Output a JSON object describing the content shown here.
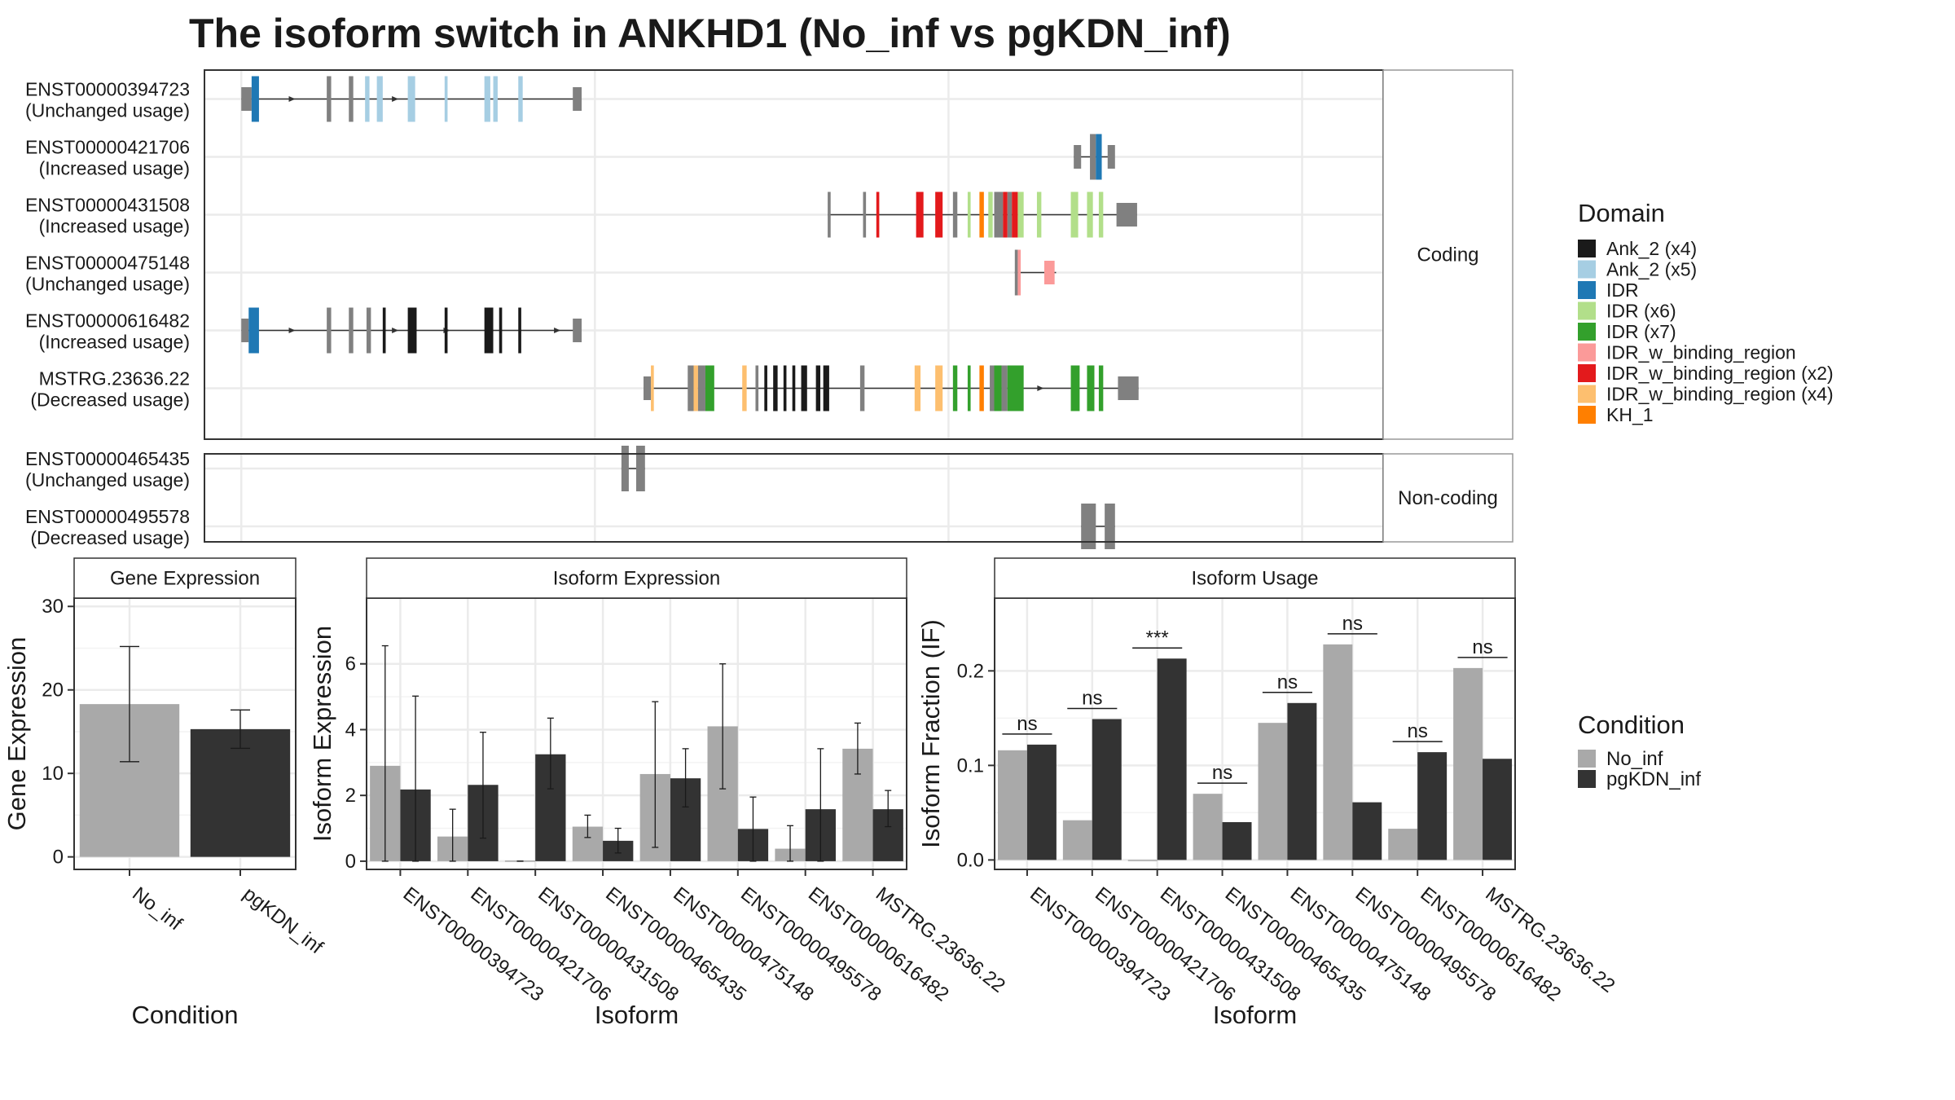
{
  "chart_data": [
    {
      "type": "gene-structure",
      "title": "The isoform switch in ANKHD1 (No_inf vs pgKDN_inf)",
      "x_grid": [
        25,
        265,
        505,
        745
      ],
      "x_range": [
        0,
        800
      ],
      "panels": [
        {
          "label": "Coding",
          "rows": [
            {
              "name": "ENST00000394723",
              "usage": "(Unchanged usage)",
              "span": [
                25,
                255
              ],
              "exons": [
                [
                  25,
                  32,
                  "#808080",
                  1
                ],
                [
                  32,
                  37,
                  "#1f78b4",
                  0
                ],
                [
                  83,
                  86,
                  "#808080",
                  0
                ],
                [
                  98,
                  101,
                  "#808080",
                  0
                ],
                [
                  109,
                  112,
                  "#a6cee3",
                  0
                ],
                [
                  117,
                  121,
                  "#a6cee3",
                  0
                ],
                [
                  138,
                  143,
                  "#a6cee3",
                  0
                ],
                [
                  163,
                  165,
                  "#a6cee3",
                  0
                ],
                [
                  190,
                  194,
                  "#a6cee3",
                  0
                ],
                [
                  196,
                  199,
                  "#a6cee3",
                  0
                ],
                [
                  213,
                  216,
                  "#a6cee3",
                  0
                ],
                [
                  250,
                  256,
                  "#808080",
                  1
                ]
              ],
              "arrows": [
                60,
                130
              ]
            },
            {
              "name": "ENST00000421706",
              "usage": "(Increased usage)",
              "span": [
                590,
                617
              ],
              "exons": [
                [
                  590,
                  595,
                  "#808080",
                  1
                ],
                [
                  601,
                  605,
                  "#808080",
                  0
                ],
                [
                  605,
                  609,
                  "#1f78b4",
                  0
                ],
                [
                  613,
                  618,
                  "#808080",
                  1
                ]
              ],
              "arrows": []
            },
            {
              "name": "ENST00000431508",
              "usage": "(Increased usage)",
              "span": [
                423,
                633
              ],
              "exons": [
                [
                  423,
                  425,
                  "#808080",
                  0
                ],
                [
                  447,
                  449,
                  "#808080",
                  0
                ],
                [
                  456,
                  458,
                  "#e31a1c",
                  0
                ],
                [
                  483,
                  488,
                  "#e31a1c",
                  0
                ],
                [
                  496,
                  501,
                  "#e31a1c",
                  0
                ],
                [
                  508,
                  511,
                  "#808080",
                  0
                ],
                [
                  518,
                  520,
                  "#b2df8a",
                  0
                ],
                [
                  526,
                  529,
                  "#ff7f00",
                  0
                ],
                [
                  532,
                  535,
                  "#b2df8a",
                  0
                ],
                [
                  536,
                  542,
                  "#808080",
                  0
                ],
                [
                  542,
                  545,
                  "#e31a1c",
                  0
                ],
                [
                  545,
                  548,
                  "#808080",
                  0
                ],
                [
                  548,
                  552,
                  "#e31a1c",
                  0
                ],
                [
                  552,
                  556,
                  "#b2df8a",
                  0
                ],
                [
                  565,
                  568,
                  "#b2df8a",
                  0
                ],
                [
                  588,
                  593,
                  "#b2df8a",
                  0
                ],
                [
                  599,
                  603,
                  "#b2df8a",
                  0
                ],
                [
                  607,
                  610,
                  "#b2df8a",
                  0
                ],
                [
                  619,
                  633,
                  "#808080",
                  1
                ]
              ],
              "arrows": []
            },
            {
              "name": "ENST00000475148",
              "usage": "(Unchanged usage)",
              "span": [
                550,
                578
              ],
              "exons": [
                [
                  550,
                  552,
                  "#808080",
                  0
                ],
                [
                  552,
                  554,
                  "#fb9a99",
                  0
                ],
                [
                  570,
                  577,
                  "#fb9a99",
                  1
                ]
              ],
              "arrows": []
            },
            {
              "name": "ENST00000616482",
              "usage": "(Increased usage)",
              "span": [
                25,
                255
              ],
              "exons": [
                [
                  25,
                  30,
                  "#808080",
                  1
                ],
                [
                  30,
                  37,
                  "#1f78b4",
                  0
                ],
                [
                  83,
                  86,
                  "#808080",
                  0
                ],
                [
                  98,
                  101,
                  "#808080",
                  0
                ],
                [
                  110,
                  113,
                  "#808080",
                  0
                ],
                [
                  121,
                  123,
                  "#1a1a1a",
                  0
                ],
                [
                  138,
                  144,
                  "#1a1a1a",
                  0
                ],
                [
                  163,
                  165,
                  "#1a1a1a",
                  0
                ],
                [
                  190,
                  196,
                  "#1a1a1a",
                  0
                ],
                [
                  200,
                  202,
                  "#1a1a1a",
                  0
                ],
                [
                  213,
                  215,
                  "#1a1a1a",
                  0
                ],
                [
                  250,
                  256,
                  "#808080",
                  1
                ]
              ],
              "arrows": [
                60,
                130,
                165,
                240
              ]
            },
            {
              "name": "MSTRG.23636.22",
              "usage": "(Decreased usage)",
              "span": [
                298,
                634
              ],
              "exons": [
                [
                  298,
                  303,
                  "#808080",
                  1
                ],
                [
                  303,
                  305,
                  "#fdbf6f",
                  0
                ],
                [
                  328,
                  332,
                  "#808080",
                  0
                ],
                [
                  332,
                  335,
                  "#fdbf6f",
                  0
                ],
                [
                  335,
                  340,
                  "#808080",
                  0
                ],
                [
                  340,
                  346,
                  "#33a02c",
                  0
                ],
                [
                  365,
                  368,
                  "#fdbf6f",
                  0
                ],
                [
                  374,
                  376,
                  "#808080",
                  0
                ],
                [
                  380,
                  382,
                  "#1a1a1a",
                  0
                ],
                [
                  386,
                  389,
                  "#1a1a1a",
                  0
                ],
                [
                  393,
                  395,
                  "#1a1a1a",
                  0
                ],
                [
                  399,
                  401,
                  "#1a1a1a",
                  0
                ],
                [
                  405,
                  409,
                  "#1a1a1a",
                  0
                ],
                [
                  415,
                  418,
                  "#1a1a1a",
                  0
                ],
                [
                  420,
                  424,
                  "#1a1a1a",
                  0
                ],
                [
                  445,
                  448,
                  "#808080",
                  0
                ],
                [
                  482,
                  486,
                  "#fdbf6f",
                  0
                ],
                [
                  496,
                  501,
                  "#fdbf6f",
                  0
                ],
                [
                  508,
                  511,
                  "#33a02c",
                  0
                ],
                [
                  518,
                  520,
                  "#33a02c",
                  0
                ],
                [
                  526,
                  529,
                  "#ff7f00",
                  0
                ],
                [
                  533,
                  536,
                  "#808080",
                  0
                ],
                [
                  536,
                  541,
                  "#33a02c",
                  0
                ],
                [
                  541,
                  545,
                  "#808080",
                  0
                ],
                [
                  545,
                  556,
                  "#33a02c",
                  0
                ],
                [
                  588,
                  594,
                  "#33a02c",
                  0
                ],
                [
                  599,
                  604,
                  "#33a02c",
                  0
                ],
                [
                  607,
                  610,
                  "#33a02c",
                  0
                ],
                [
                  620,
                  634,
                  "#808080",
                  1
                ]
              ],
              "arrows": [
                568
              ]
            }
          ]
        },
        {
          "label": "Non-coding",
          "rows": [
            {
              "name": "ENST00000465435",
              "usage": "(Unchanged usage)",
              "span": [
                283,
                299
              ],
              "exons": [
                [
                  283,
                  288,
                  "#808080",
                  0
                ],
                [
                  293,
                  299,
                  "#808080",
                  0
                ]
              ],
              "arrows": []
            },
            {
              "name": "ENST00000495578",
              "usage": "(Decreased usage)",
              "span": [
                595,
                618
              ],
              "exons": [
                [
                  595,
                  605,
                  "#808080",
                  0
                ],
                [
                  611,
                  618,
                  "#808080",
                  0
                ]
              ],
              "arrows": []
            }
          ]
        }
      ],
      "legend": {
        "title": "Domain",
        "items": [
          {
            "label": "Ank_2 (x4)",
            "color": "#1a1a1a"
          },
          {
            "label": "Ank_2 (x5)",
            "color": "#a6cee3"
          },
          {
            "label": "IDR",
            "color": "#1f78b4"
          },
          {
            "label": "IDR (x6)",
            "color": "#b2df8a"
          },
          {
            "label": "IDR (x7)",
            "color": "#33a02c"
          },
          {
            "label": "IDR_w_binding_region",
            "color": "#fb9a99"
          },
          {
            "label": "IDR_w_binding_region (x2)",
            "color": "#e31a1c"
          },
          {
            "label": "IDR_w_binding_region (x4)",
            "color": "#fdbf6f"
          },
          {
            "label": "KH_1",
            "color": "#ff7f00"
          }
        ]
      }
    },
    {
      "type": "bar",
      "title": "Gene Expression",
      "xlabel": "Condition",
      "ylabel": "Gene Expression",
      "categories": [
        "No_inf",
        "pgKDN_inf"
      ],
      "values": [
        18.3,
        15.3
      ],
      "error_low": [
        11.4,
        13.0
      ],
      "error_high": [
        25.2,
        17.6
      ],
      "colors": [
        "#a9a9a9",
        "#333333"
      ],
      "ylim": [
        -1.5,
        31
      ],
      "yticks": [
        0,
        10,
        20,
        30
      ]
    },
    {
      "type": "bar",
      "title": "Isoform Expression",
      "xlabel": "Isoform",
      "ylabel": "Isoform Expression",
      "categories": [
        "ENST00000394723",
        "ENST00000421706",
        "ENST00000431508",
        "ENST00000465435",
        "ENST00000475148",
        "ENST00000495578",
        "ENST00000616482",
        "MSTRG.23636.22"
      ],
      "series": [
        {
          "name": "No_inf",
          "color": "#a9a9a9",
          "values": [
            2.9,
            0.75,
            0.02,
            1.05,
            2.65,
            4.1,
            0.38,
            3.42
          ],
          "error_low": [
            0,
            0,
            0,
            0.72,
            0.42,
            2.2,
            0,
            2.65
          ],
          "error_high": [
            6.55,
            1.58,
            0,
            1.4,
            4.85,
            6.0,
            1.08,
            4.2
          ]
        },
        {
          "name": "pgKDN_inf",
          "color": "#333333",
          "values": [
            2.18,
            2.32,
            3.25,
            0.62,
            2.52,
            0.98,
            1.58,
            1.58
          ],
          "error_low": [
            0,
            0.7,
            2.2,
            0.25,
            1.65,
            0,
            0,
            1.05
          ],
          "error_high": [
            5.02,
            3.92,
            4.35,
            1.0,
            3.42,
            1.95,
            3.42,
            2.15
          ]
        }
      ],
      "ylim": [
        -0.25,
        8.0
      ],
      "yticks": [
        0,
        2,
        4,
        6
      ]
    },
    {
      "type": "bar",
      "title": "Isoform Usage",
      "xlabel": "Isoform",
      "ylabel": "Isoform Fraction (IF)",
      "categories": [
        "ENST00000394723",
        "ENST00000421706",
        "ENST00000431508",
        "ENST00000465435",
        "ENST00000475148",
        "ENST00000495578",
        "ENST00000616482",
        "MSTRG.23636.22"
      ],
      "series": [
        {
          "name": "No_inf",
          "color": "#a9a9a9",
          "values": [
            0.116,
            0.042,
            0.0,
            0.07,
            0.145,
            0.228,
            0.033,
            0.203
          ]
        },
        {
          "name": "pgKDN_inf",
          "color": "#333333",
          "values": [
            0.122,
            0.149,
            0.213,
            0.04,
            0.166,
            0.061,
            0.114,
            0.107
          ]
        }
      ],
      "significance": [
        "ns",
        "ns",
        "***",
        "ns",
        "ns",
        "ns",
        "ns",
        "ns"
      ],
      "ylim": [
        -0.01,
        0.277
      ],
      "yticks": [
        0.0,
        0.1,
        0.2
      ],
      "legend": {
        "title": "Condition",
        "items": [
          "No_inf",
          "pgKDN_inf"
        ]
      }
    }
  ]
}
